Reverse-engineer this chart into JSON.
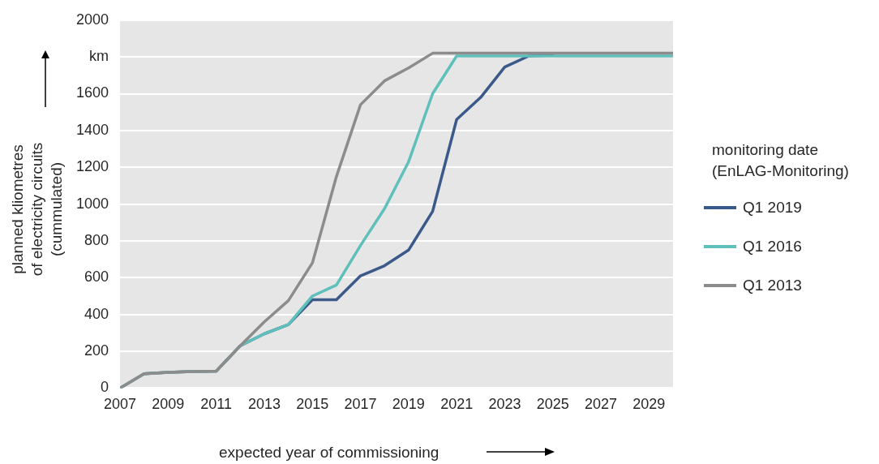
{
  "chart_data": {
    "type": "line",
    "xlabel": "expected year of commissioning",
    "ylabel": "planned kliometres\nof electricity circuits\n(cummulated)",
    "legend_title": "monitoring date\n(EnLAG-Monitoring)",
    "x": [
      2007,
      2008,
      2009,
      2010,
      2011,
      2012,
      2013,
      2014,
      2015,
      2016,
      2017,
      2018,
      2019,
      2020,
      2021,
      2022,
      2023,
      2024,
      2025,
      2026,
      2027,
      2028,
      2029,
      2030
    ],
    "series": [
      {
        "name": "Q1 2019",
        "color": "#3b5a8a",
        "values": [
          0,
          78,
          85,
          90,
          92,
          230,
          295,
          345,
          480,
          480,
          610,
          665,
          750,
          960,
          1460,
          1580,
          1745,
          1805,
          1810,
          null,
          null,
          null,
          null,
          null
        ]
      },
      {
        "name": "Q1 2016",
        "color": "#5fbfba",
        "values": [
          0,
          78,
          85,
          90,
          92,
          230,
          295,
          345,
          500,
          560,
          775,
          975,
          1230,
          1600,
          1805,
          1805,
          1805,
          1805,
          1805,
          1805,
          1805,
          1805,
          1805,
          1805
        ]
      },
      {
        "name": "Q1 2013",
        "color": "#8c8c8c",
        "values": [
          0,
          78,
          85,
          90,
          92,
          230,
          360,
          475,
          680,
          1150,
          1540,
          1670,
          1740,
          1820,
          1820,
          1820,
          1820,
          1820,
          1820,
          1820,
          1820,
          1820,
          1820,
          1820
        ]
      }
    ],
    "xlim": [
      2007,
      2030
    ],
    "xticks": [
      2007,
      2009,
      2011,
      2013,
      2015,
      2017,
      2019,
      2021,
      2023,
      2025,
      2027,
      2029
    ],
    "ylim": [
      0,
      2000
    ],
    "yticks": [
      0,
      200,
      400,
      600,
      800,
      1000,
      1200,
      1400,
      1600,
      {
        "value": 1800,
        "label": "km"
      },
      2000
    ],
    "grid": "y",
    "legend": "right",
    "marker": "none",
    "line_style": "solid"
  }
}
